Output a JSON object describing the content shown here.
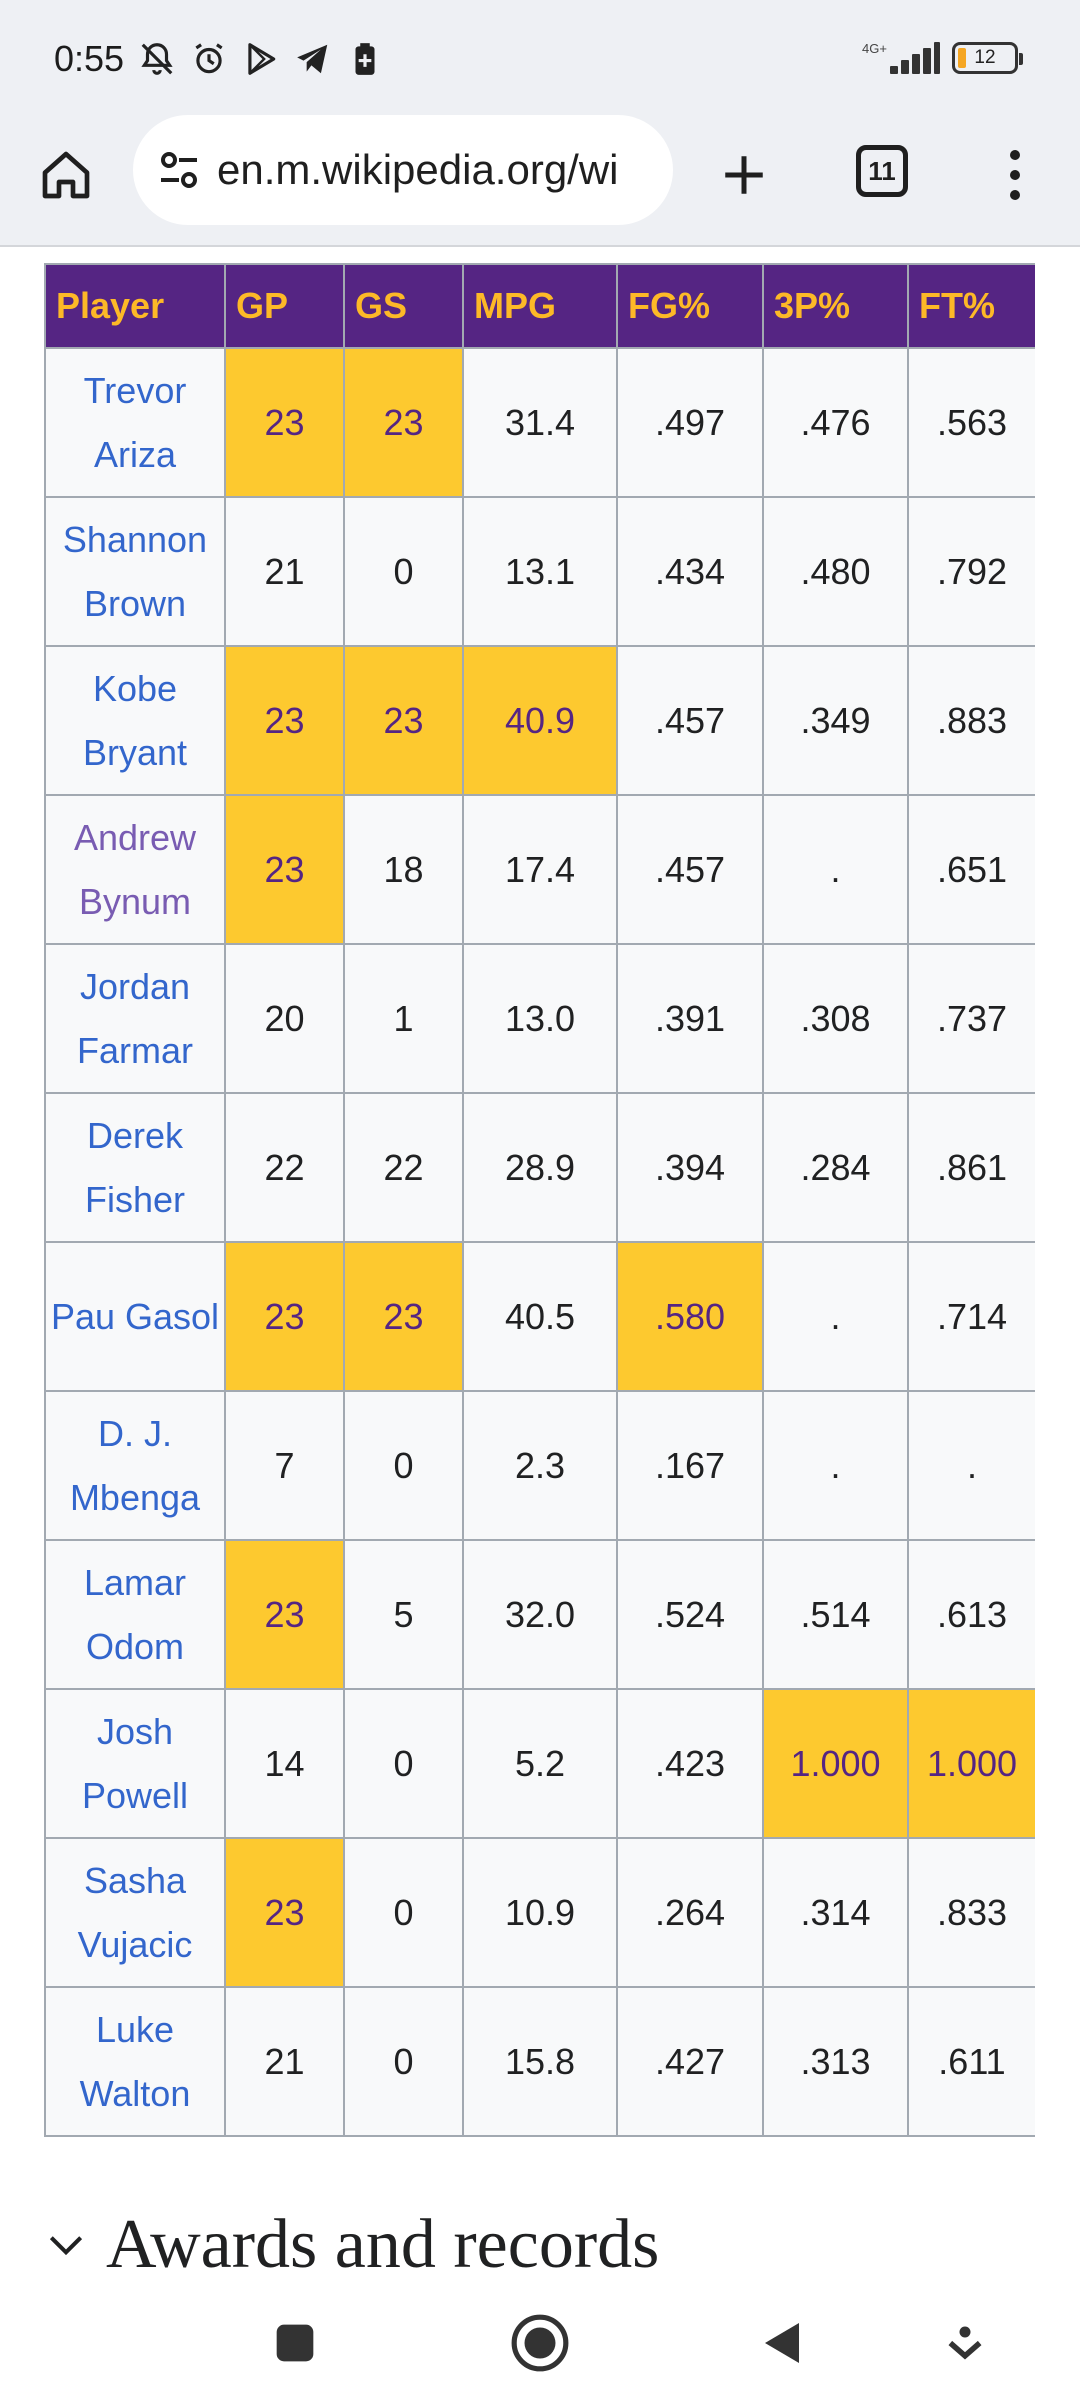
{
  "status_bar": {
    "time": "0:55",
    "network_label": "4G+",
    "battery_level": "12"
  },
  "browser": {
    "url": "en.m.wikipedia.org/wi",
    "tab_count": "11"
  },
  "stats_table": {
    "headers": [
      "Player",
      "GP",
      "GS",
      "MPG",
      "FG%",
      "3P%",
      "FT%"
    ],
    "rows": [
      {
        "player": "Trevor Ariza",
        "gp": "23",
        "gs": "23",
        "mpg": "31.4",
        "fg": ".497",
        "tp": ".476",
        "ft": ".563"
      },
      {
        "player": "Shannon Brown",
        "gp": "21",
        "gs": "0",
        "mpg": "13.1",
        "fg": ".434",
        "tp": ".480",
        "ft": ".792"
      },
      {
        "player": "Kobe Bryant",
        "gp": "23",
        "gs": "23",
        "mpg": "40.9",
        "fg": ".457",
        "tp": ".349",
        "ft": ".883"
      },
      {
        "player": "Andrew Bynum",
        "gp": "23",
        "gs": "18",
        "mpg": "17.4",
        "fg": ".457",
        "tp": ".",
        "ft": ".651"
      },
      {
        "player": "Jordan Farmar",
        "gp": "20",
        "gs": "1",
        "mpg": "13.0",
        "fg": ".391",
        "tp": ".308",
        "ft": ".737"
      },
      {
        "player": "Derek Fisher",
        "gp": "22",
        "gs": "22",
        "mpg": "28.9",
        "fg": ".394",
        "tp": ".284",
        "ft": ".861"
      },
      {
        "player": "Pau Gasol",
        "gp": "23",
        "gs": "23",
        "mpg": "40.5",
        "fg": ".580",
        "tp": ".",
        "ft": ".714"
      },
      {
        "player": "D. J. Mbenga",
        "gp": "7",
        "gs": "0",
        "mpg": "2.3",
        "fg": ".167",
        "tp": ".",
        "ft": "."
      },
      {
        "player": "Lamar Odom",
        "gp": "23",
        "gs": "5",
        "mpg": "32.0",
        "fg": ".524",
        "tp": ".514",
        "ft": ".613"
      },
      {
        "player": "Josh Powell",
        "gp": "14",
        "gs": "0",
        "mpg": "5.2",
        "fg": ".423",
        "tp": "1.000",
        "ft": "1.000"
      },
      {
        "player": "Sasha Vujacic",
        "gp": "23",
        "gs": "0",
        "mpg": "10.9",
        "fg": ".264",
        "tp": ".314",
        "ft": ".833"
      },
      {
        "player": "Luke Walton",
        "gp": "21",
        "gs": "0",
        "mpg": "15.8",
        "fg": ".427",
        "tp": ".313",
        "ft": ".611"
      }
    ]
  },
  "section": {
    "title": "Awards and records"
  },
  "colors": {
    "header_bg": "#552583",
    "header_text": "#fdb927",
    "highlight": "#fdc92f",
    "link": "#3366cc",
    "visited_link": "#795cb2"
  }
}
